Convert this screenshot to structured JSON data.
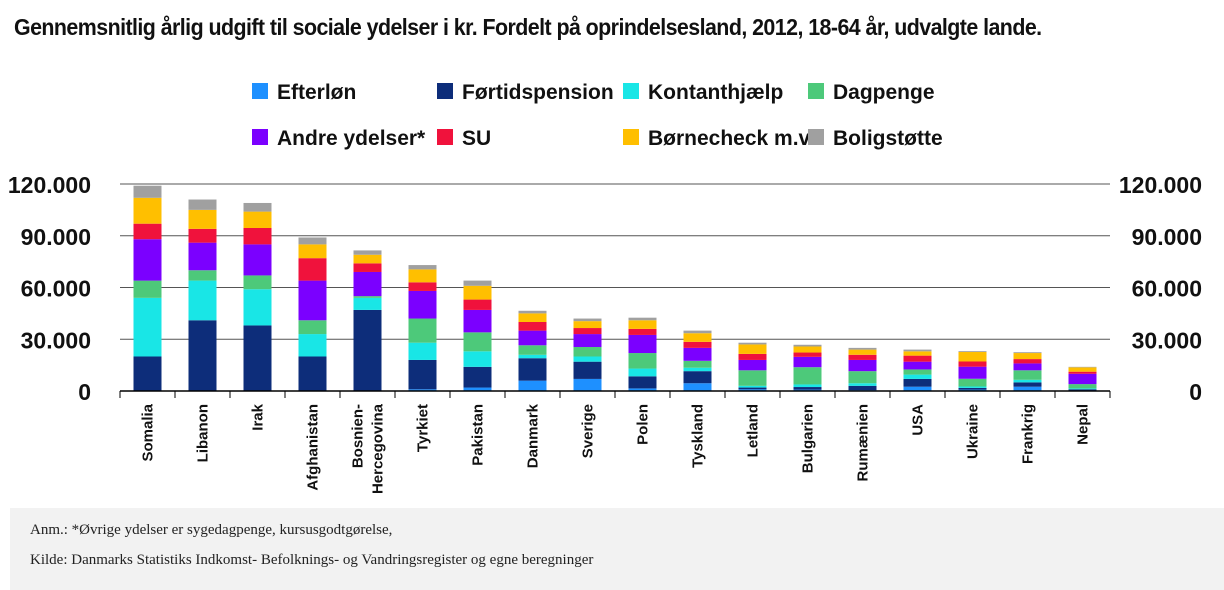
{
  "chart_data": {
    "type": "bar",
    "stacked": true,
    "title": "Gennemsnitlig årlig udgift til sociale ydelser i kr. Fordelt på oprindelsesland, 2012, 18-64 år, udvalgte lande.",
    "categories": [
      "Somalia",
      "Libanon",
      "Irak",
      "Afghanistan",
      "Bosnien-\nHercegovina",
      "Tyrkiet",
      "Pakistan",
      "Danmark",
      "Sverige",
      "Polen",
      "Tyskland",
      "Letland",
      "Bulgarien",
      "Rumænien",
      "USA",
      "Ukraine",
      "Frankrig",
      "Nepal"
    ],
    "series": [
      {
        "name": "Efterløn",
        "color": "#1e90ff",
        "values": [
          0,
          0,
          0,
          0,
          0,
          1000,
          2000,
          6000,
          7000,
          1500,
          4500,
          1000,
          800,
          500,
          2500,
          800,
          2500,
          300
        ]
      },
      {
        "name": "Førtidspension",
        "color": "#0d2d7a",
        "values": [
          20000,
          41000,
          38000,
          20000,
          47000,
          17000,
          12000,
          13000,
          10000,
          7000,
          7000,
          1000,
          1500,
          2500,
          4500,
          1000,
          2500,
          700
        ]
      },
      {
        "name": "Kontanthjælp",
        "color": "#19e6e6",
        "values": [
          34000,
          23000,
          21000,
          13000,
          7000,
          10000,
          9000,
          2000,
          3000,
          4500,
          2000,
          1000,
          1500,
          1500,
          2500,
          800,
          1500,
          500
        ]
      },
      {
        "name": "Dagpenge",
        "color": "#4dc97a",
        "values": [
          10000,
          6000,
          8000,
          8000,
          1000,
          14000,
          11000,
          5500,
          5500,
          9000,
          4000,
          9000,
          10000,
          7000,
          3000,
          4500,
          5500,
          2500
        ]
      },
      {
        "name": "Andre ydelser*",
        "color": "#7b00ff",
        "values": [
          24000,
          16000,
          18000,
          23000,
          14000,
          16000,
          13000,
          8500,
          7500,
          10500,
          7500,
          6000,
          6000,
          6500,
          4500,
          7000,
          4000,
          6000
        ]
      },
      {
        "name": "SU",
        "color": "#f0123c",
        "values": [
          9000,
          8000,
          9500,
          13000,
          5000,
          5000,
          6000,
          5000,
          3500,
          3500,
          3500,
          3500,
          2500,
          3000,
          3500,
          3000,
          2500,
          1200
        ]
      },
      {
        "name": "Børnecheck m.v.",
        "color": "#ffbf00",
        "values": [
          15000,
          11000,
          9500,
          8000,
          5000,
          7500,
          8000,
          5000,
          4000,
          5000,
          5000,
          5500,
          3500,
          3000,
          2500,
          5500,
          3500,
          2500
        ]
      },
      {
        "name": "Boligstøtte",
        "color": "#a0a0a0",
        "values": [
          7000,
          6000,
          5000,
          4000,
          2500,
          2500,
          3000,
          1500,
          1500,
          1500,
          1500,
          1000,
          1000,
          1000,
          1000,
          500,
          500,
          300
        ]
      }
    ],
    "ylim": [
      0,
      120000
    ],
    "yticks": [
      "0",
      "30.000",
      "60.000",
      "90.000",
      "120.000"
    ],
    "ytick_values": [
      0,
      30000,
      60000,
      90000,
      120000
    ],
    "grid": true,
    "legend_position": "top"
  },
  "notes": {
    "line1": "Anm.: *Øvrige ydelser er sygedagpenge, kursusgodtgørelse,",
    "line2": "Kilde: Danmarks Statistiks Indkomst- Befolknings- og Vandringsregister og egne beregninger"
  }
}
